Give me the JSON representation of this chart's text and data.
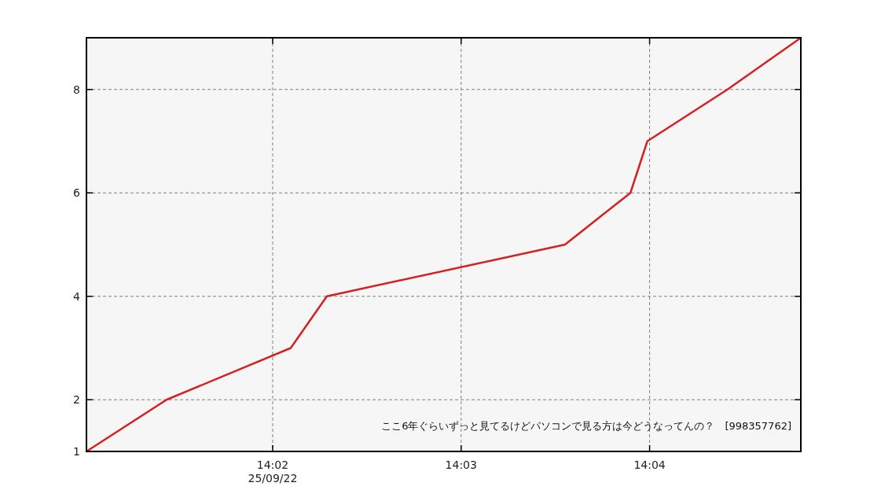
{
  "chart_data": {
    "type": "line",
    "x": [
      14.0168,
      14.0239,
      14.0349,
      14.0381,
      14.0592,
      14.065,
      14.0665,
      14.0736,
      14.0801
    ],
    "series": [
      {
        "color": "#d42020",
        "values": [
          1,
          2,
          3,
          4,
          5,
          6,
          7,
          8,
          9
        ]
      }
    ],
    "xlim": [
      14.0168,
      14.0801
    ],
    "ylim": [
      1,
      9
    ],
    "xticks": [
      {
        "value": 14.0333,
        "label": "14:02\n25/09/22"
      },
      {
        "value": 14.05,
        "label": "14:03"
      },
      {
        "value": 14.0667,
        "label": "14:04"
      }
    ],
    "yticks": [
      1,
      2,
      4,
      6,
      8
    ],
    "grid": true,
    "line_style": "solid",
    "annotations": [
      "ここ6年ぐらいずっと見てるけどパソコンで見る方は今どうなってんの？　[998357762]"
    ]
  }
}
